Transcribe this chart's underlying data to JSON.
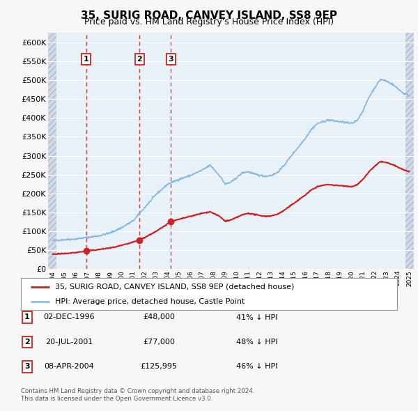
{
  "title": "35, SURIG ROAD, CANVEY ISLAND, SS8 9EP",
  "subtitle": "Price paid vs. HM Land Registry's House Price Index (HPI)",
  "yticks": [
    0,
    50000,
    100000,
    150000,
    200000,
    250000,
    300000,
    350000,
    400000,
    450000,
    500000,
    550000,
    600000
  ],
  "ytick_labels": [
    "£0",
    "£50K",
    "£100K",
    "£150K",
    "£200K",
    "£250K",
    "£300K",
    "£350K",
    "£400K",
    "£450K",
    "£500K",
    "£550K",
    "£600K"
  ],
  "xmin": 1993.6,
  "xmax": 2025.4,
  "ymin": 0,
  "ymax": 625000,
  "sale_color": "#cc2222",
  "hpi_color": "#88bbdd",
  "sale_label": "35, SURIG ROAD, CANVEY ISLAND, SS8 9EP (detached house)",
  "hpi_label": "HPI: Average price, detached house, Castle Point",
  "transactions": [
    {
      "num": 1,
      "date_dec": 1996.92,
      "price": 48000,
      "label": "1",
      "date_str": "02-DEC-1996",
      "price_str": "£48,000",
      "pct_str": "41% ↓ HPI"
    },
    {
      "num": 2,
      "date_dec": 2001.55,
      "price": 77000,
      "label": "2",
      "date_str": "20-JUL-2001",
      "price_str": "£77,000",
      "pct_str": "48% ↓ HPI"
    },
    {
      "num": 3,
      "date_dec": 2004.27,
      "price": 125995,
      "label": "3",
      "date_str": "08-APR-2004",
      "price_str": "£125,995",
      "pct_str": "46% ↓ HPI"
    }
  ],
  "footnote1": "Contains HM Land Registry data © Crown copyright and database right 2024.",
  "footnote2": "This data is licensed under the Open Government Licence v3.0.",
  "background_color": "#f7f7f7",
  "plot_bg_color": "#e8f0f8",
  "grid_color": "#ffffff"
}
